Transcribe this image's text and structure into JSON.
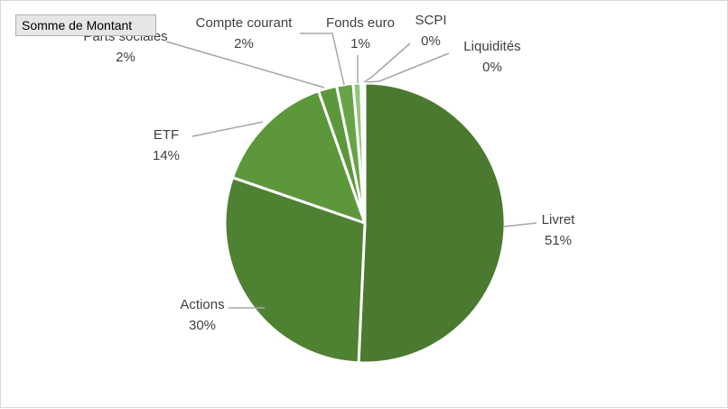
{
  "field_button": {
    "label": "Somme de Montant"
  },
  "chart_data": {
    "type": "pie",
    "title": "",
    "categories": [
      "Livret",
      "Actions",
      "ETF",
      "Parts sociales",
      "Compte courant",
      "Fonds euro",
      "SCPI",
      "Liquidités"
    ],
    "values": [
      51,
      30,
      14,
      2,
      2,
      1,
      0,
      0
    ],
    "value_labels": [
      "51%",
      "30%",
      "14%",
      "2%",
      "2%",
      "1%",
      "0%",
      "0%"
    ],
    "colors": [
      "#4a7a30",
      "#4f8133",
      "#5c973c",
      "#5c973c",
      "#66a445",
      "#94c47c",
      "#b8d8a8",
      "#cfe4c2"
    ],
    "legend": "none",
    "data_labels": "outside-with-leader-lines"
  }
}
